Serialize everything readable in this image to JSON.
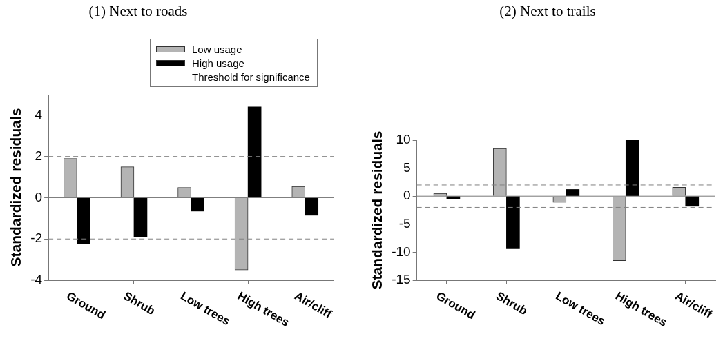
{
  "chart_data": [
    {
      "type": "bar",
      "title": "(1) Next to roads",
      "ylabel": "Standardized residuals",
      "categories": [
        "Ground",
        "Shrub",
        "Low trees",
        "High trees",
        "Air/cliff"
      ],
      "series": [
        {
          "name": "Low usage",
          "color": "#b4b4b4",
          "values": [
            1.9,
            1.5,
            0.5,
            -3.5,
            0.55
          ]
        },
        {
          "name": "High usage",
          "color": "#000000",
          "values": [
            -2.25,
            -1.9,
            -0.65,
            4.4,
            -0.85
          ]
        }
      ],
      "ylim": [
        -4,
        5
      ],
      "yticks": [
        -4,
        -2,
        0,
        2,
        4
      ],
      "grid": false,
      "legend": "top right",
      "ref_lines": [
        {
          "axis": "y",
          "value": 2,
          "label": "Threshold for significance",
          "color": "#808080",
          "line_style": "dashed"
        },
        {
          "axis": "y",
          "value": -2,
          "color": "#808080",
          "line_style": "dashed"
        }
      ]
    },
    {
      "type": "bar",
      "title": "(2) Next to trails",
      "ylabel": "Standardized residuals",
      "categories": [
        "Ground",
        "Shrub",
        "Low trees",
        "High trees",
        "Air/cliff"
      ],
      "series": [
        {
          "color": "#b4b4b4",
          "values": [
            0.5,
            8.5,
            -1.1,
            -11.5,
            1.6
          ]
        },
        {
          "color": "#000000",
          "values": [
            -0.5,
            -9.4,
            1.2,
            10,
            -1.8
          ]
        }
      ],
      "ylim": [
        -15,
        10
      ],
      "yticks": [
        -15,
        -10,
        -5,
        0,
        5,
        10
      ],
      "legend": false,
      "ref_lines": [
        {
          "axis": "y",
          "value": 2,
          "color": "#808080",
          "line_style": "dashed"
        },
        {
          "axis": "y",
          "value": -2,
          "color": "#808080",
          "line_style": "dashed"
        }
      ]
    }
  ]
}
